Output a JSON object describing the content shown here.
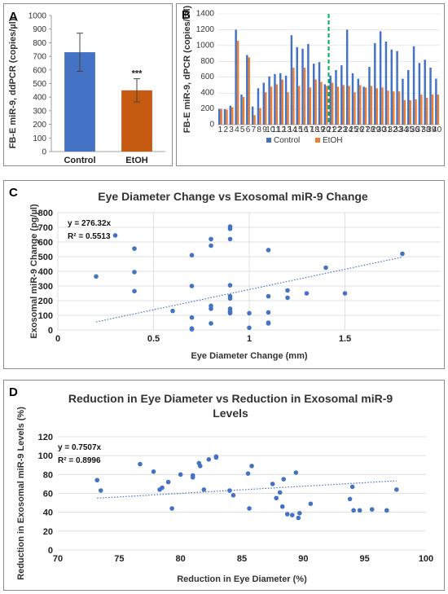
{
  "panels": {
    "a": "A",
    "b": "B",
    "c": "C",
    "d": "D"
  },
  "colors": {
    "control": "#4472c4",
    "etoh": "#c55a11",
    "etoh_b": "#ed7d31",
    "point": "#4472c4",
    "grid": "#d9d9d9",
    "dash": "#00b050"
  },
  "chart_data": [
    {
      "id": "A",
      "type": "bar",
      "categories": [
        "Control",
        "EtOH"
      ],
      "values": [
        730,
        450
      ],
      "errors": [
        140,
        85
      ],
      "significance": [
        "",
        "***"
      ],
      "ylabel": "FB-E miR-9, ddPCR (copies/µl)",
      "ylim": [
        0,
        1000
      ],
      "yticks": [
        0,
        100,
        200,
        300,
        400,
        500,
        600,
        700,
        800,
        900,
        1000
      ],
      "grid": false
    },
    {
      "id": "B",
      "type": "bar",
      "categories": [
        "1",
        "2",
        "3",
        "4",
        "5",
        "6",
        "7",
        "8",
        "9",
        "10",
        "11",
        "12",
        "13",
        "14",
        "15",
        "16",
        "17",
        "18",
        "19",
        "20",
        "21",
        "22",
        "23",
        "24",
        "25",
        "26",
        "27",
        "28",
        "29",
        "30",
        "31",
        "32",
        "33",
        "34",
        "35",
        "36",
        "37",
        "38",
        "39",
        "40"
      ],
      "series": [
        {
          "name": "Control",
          "values": [
            200,
            195,
            240,
            1200,
            380,
            880,
            230,
            460,
            530,
            610,
            640,
            650,
            620,
            1130,
            980,
            960,
            1020,
            770,
            790,
            510,
            620,
            690,
            750,
            1200,
            650,
            580,
            480,
            730,
            1030,
            1180,
            1050,
            950,
            930,
            580,
            690,
            990,
            780,
            820,
            720,
            580
          ]
        },
        {
          "name": "EtOH",
          "values": [
            200,
            190,
            220,
            1060,
            350,
            850,
            120,
            210,
            410,
            480,
            510,
            570,
            410,
            720,
            490,
            720,
            470,
            570,
            540,
            490,
            530,
            480,
            500,
            490,
            410,
            500,
            470,
            490,
            460,
            470,
            430,
            420,
            420,
            310,
            310,
            320,
            380,
            340,
            380,
            380
          ]
        }
      ],
      "divider_after": "20",
      "ylabel": "FB-E miR-9, dPCR (copies/ml)",
      "ylim": [
        0,
        1400
      ],
      "yticks": [
        0,
        200,
        400,
        600,
        800,
        1000,
        1200,
        1400
      ],
      "legend": "bottom",
      "grid": true
    },
    {
      "id": "C",
      "type": "scatter",
      "title": "Eye Diameter Change vs Exosomal miR-9 Change",
      "xlabel": "Eye Diameter Change (mm)",
      "ylabel": "Exosomal miR-9 Change  (pg/µl)",
      "xlim": [
        0,
        2
      ],
      "ylim": [
        0,
        800
      ],
      "xticks": [
        {
          "v": 0,
          "t": "0"
        },
        {
          "v": 0.5,
          "t": "0.5"
        },
        {
          "v": 1,
          "t": "1"
        },
        {
          "v": 1.5,
          "t": "1.5"
        }
      ],
      "yticks": [
        0,
        100,
        200,
        300,
        400,
        500,
        600,
        700,
        800
      ],
      "equation": "y = 276.32x",
      "r2": "R² = 0.5513",
      "trend": [
        [
          0.2,
          55
        ],
        [
          1.8,
          497
        ]
      ],
      "x": [
        0.2,
        0.3,
        0.4,
        0.4,
        0.4,
        0.6,
        0.7,
        0.7,
        0.7,
        0.7,
        0.7,
        0.8,
        0.8,
        0.8,
        0.8,
        0.8,
        0.9,
        0.9,
        0.9,
        0.9,
        0.9,
        0.9,
        0.9,
        0.9,
        0.9,
        0.9,
        1.0,
        1.0,
        1.1,
        1.1,
        1.1,
        1.1,
        1.1,
        1.2,
        1.2,
        1.3,
        1.4,
        1.5,
        1.8
      ],
      "y": [
        365,
        645,
        555,
        395,
        265,
        130,
        510,
        300,
        85,
        10,
        5,
        620,
        575,
        165,
        145,
        45,
        705,
        690,
        620,
        305,
        230,
        215,
        145,
        130,
        120,
        115,
        115,
        15,
        545,
        230,
        120,
        50,
        45,
        270,
        220,
        250,
        425,
        250,
        520
      ]
    },
    {
      "id": "D",
      "type": "scatter",
      "title": "Reduction in Eye Diameter vs Reduction in Exosomal miR-9 Levels",
      "title_lines": [
        "Reduction in Eye Diameter vs Reduction in Exosomal miR-9",
        "Levels"
      ],
      "xlabel": "Reduction in Eye Diameter (%)",
      "ylabel": "Reduction in Exosomal miR-9 Levels (%)",
      "xlim": [
        70,
        100
      ],
      "ylim": [
        0,
        120
      ],
      "xticks": [
        {
          "v": 70,
          "t": "70"
        },
        {
          "v": 75,
          "t": "75"
        },
        {
          "v": 80,
          "t": "80"
        },
        {
          "v": 85,
          "t": "85"
        },
        {
          "v": 90,
          "t": "90"
        },
        {
          "v": 95,
          "t": "95"
        },
        {
          "v": 100,
          "t": "100"
        }
      ],
      "yticks": [
        0,
        20,
        40,
        60,
        80,
        100,
        120
      ],
      "equation": "y = 0.7507x",
      "r2": "R² = 0.8996",
      "trend": [
        [
          73.2,
          54.9
        ],
        [
          97.6,
          73.3
        ]
      ],
      "x": [
        73.2,
        73.5,
        76.7,
        77.8,
        78.3,
        78.5,
        79.0,
        79.3,
        80.0,
        81.0,
        81.0,
        81.5,
        81.6,
        81.9,
        82.3,
        82.9,
        82.9,
        84.0,
        84.3,
        85.5,
        85.6,
        85.8,
        87.5,
        87.8,
        88.1,
        88.3,
        88.4,
        88.7,
        89.1,
        89.4,
        89.6,
        89.7,
        90.6,
        93.8,
        94.0,
        94.1,
        94.6,
        95.6,
        96.8,
        97.6
      ],
      "y": [
        74,
        63,
        91,
        83,
        64,
        66,
        72,
        44,
        80,
        79,
        77,
        92,
        89,
        64,
        96,
        98,
        99,
        63,
        58,
        81,
        44,
        89,
        70,
        55,
        61,
        46,
        75,
        38,
        37,
        82,
        34,
        39,
        49,
        54,
        67,
        42,
        42,
        43,
        42,
        64
      ]
    }
  ]
}
